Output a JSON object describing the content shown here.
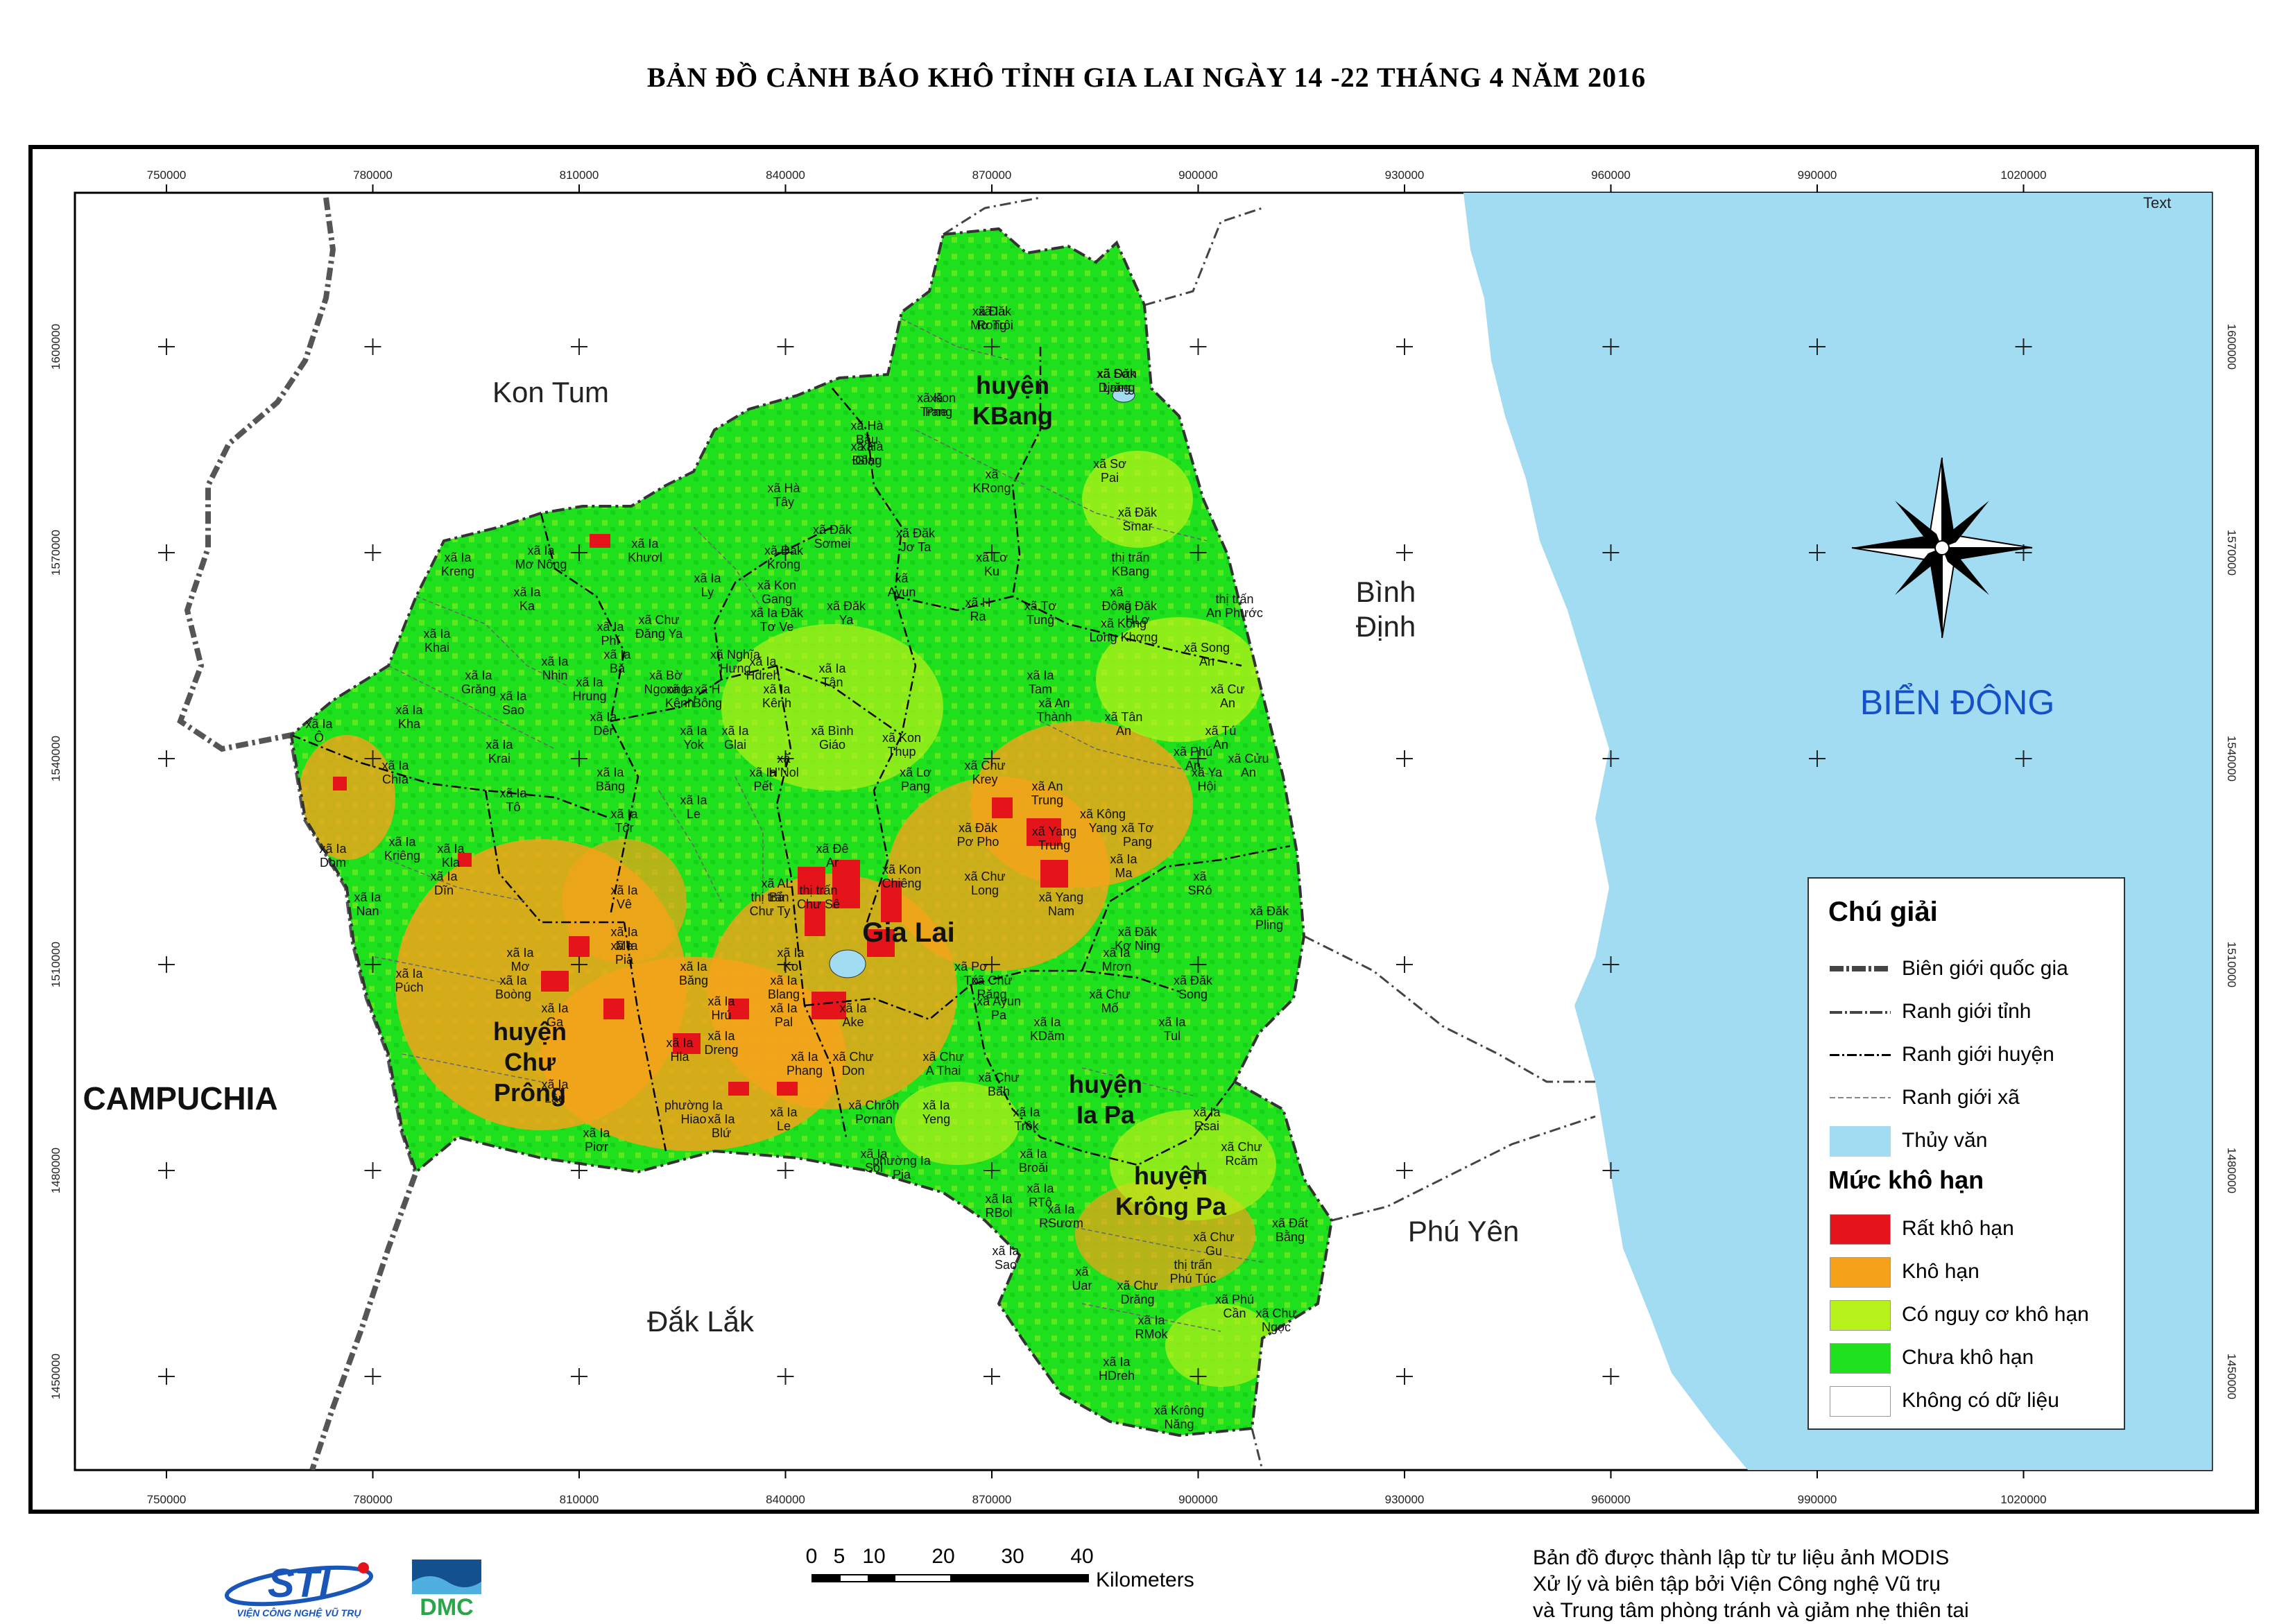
{
  "title": "BẢN ĐỒ CẢNH BÁO KHÔ TỈNH GIA LAI NGÀY 14 -22 THÁNG 4 NĂM 2016",
  "colors": {
    "sea": "#a2dcf2",
    "very_dry": "#e5131a",
    "dry": "#f5a21a",
    "risk": "#b6f11a",
    "not_dry": "#1fe01c",
    "no_data": "#ffffff"
  },
  "axes": {
    "x_ticks": [
      "750000",
      "780000",
      "810000",
      "840000",
      "870000",
      "900000",
      "930000",
      "960000",
      "990000",
      "1020000"
    ],
    "y_ticks": [
      "1600000",
      "1570000",
      "1540000",
      "1510000",
      "1480000",
      "1450000"
    ]
  },
  "regions": {
    "kon_tum": "Kon Tum",
    "binh_dinh": "Bình Định",
    "phu_yen": "Phú Yên",
    "dak_lak": "Đắk Lắk",
    "campuchia": "CAMPUCHIA",
    "bien_dong": "BIỂN ĐÔNG"
  },
  "districts": {
    "kbang": [
      "huyện",
      "KBang"
    ],
    "chu_prong": [
      "huyện",
      "Chư",
      "Prông"
    ],
    "ia_pa": [
      "huyện",
      "Ia Pa"
    ],
    "krong_pa": [
      "huyện",
      "Krông Pa"
    ],
    "gia_lai": "Gia Lai"
  },
  "corner_text": "Text",
  "communes": [
    "xã Đăk Rong",
    "xã Sơn Lang",
    "xã Kon Pne",
    "xã Hà Đông",
    "xã KRong",
    "xã Sơ Pai",
    "xã Đăk Smar",
    "thị trấn KBang",
    "xã Đông",
    "xã Tơ Tung",
    "xã Kông Long Khơng",
    "xã Lơ Ku",
    "xã H Ra",
    "xã Đăk Jơ Ta",
    "xã Ayun",
    "xã Đăk Sơmei",
    "xã Đăk Krong",
    "xã Kon Gang",
    "xã Ia Mơ Nông",
    "xã Ia Kreng",
    "xã Ia Ka",
    "xã Ia Khai",
    "xã Ia Grăng",
    "xã Ia Ô",
    "xã Ia Chía",
    "xã Ia Dom",
    "xã Ia Nan",
    "xã Ia Púch",
    "xã Ia Mơ",
    "xã Ia Lâu",
    "xã Ia Piơr",
    "xã Ia Boòng",
    "xã Ia Ga",
    "xã Ia Pia",
    "xã Ia Hla",
    "xã Ia Blứ",
    "xã Ia Le",
    "xã Ia Phang",
    "xã Ia Rsai",
    "xã Chư Rcăm",
    "xã Đất Bằng",
    "xã Chư Gu",
    "thị trấn Phú Túc",
    "xã Phú Cần",
    "xã Chư Ngọc",
    "xã Uar",
    "xã Chư Drăng",
    "xã Ia RMok",
    "xã Ia HDreh",
    "xã Krông Năng",
    "xã Ia Sao",
    "xã Ia RBol",
    "xã Ia RTô",
    "xã Ia RSươm",
    "xã Ia Broăi",
    "xã Ia Trôk",
    "xã Ia Tul",
    "xã Ia KDăm",
    "xã Chư Mố",
    "xã Ia Mrơn",
    "xã Đăk Song",
    "xã Đăk Pling",
    "xã Ia Ma",
    "xã Yang Trung",
    "xã Đăk Pơ Pho",
    "xã Chư Krey",
    "xã An Trung",
    "xã Kông Yang",
    "xã Tơ Pang",
    "xã Yang Nam",
    "xã Chư Long",
    "xã SRó",
    "xã Đăk Kơ Ning",
    "xã Ya Hội",
    "xã Phú An",
    "xã Tân An",
    "xã Cư An",
    "xã An Thành",
    "xã Ia Tam",
    "xã Tú An",
    "xã Cửu An",
    "xã Song An",
    "thị trấn An Phước",
    "xã Đăk HLơ",
    "xã Ayun Pa",
    "xã Chư Răng",
    "xã Chư Băh",
    "xã Pơ Tó",
    "thị trấn Chư Sê",
    "xã AL Bá",
    "xã Ia Ko",
    "xã Đê Ar",
    "xã Kon Chiêng",
    "xã Lơ Pang",
    "xã Kon Thụp",
    "xã H'Nol",
    "xã Bình Giáo",
    "xã Ia Le",
    "thị trấn Chư Ty",
    "xã Ia Kla",
    "xã Ia Kriêng",
    "xã Ia Dĩn",
    "xã Ia Tô",
    "xã Ia Krai",
    "xã Ia Kha",
    "xã Ia Sao",
    "xã Ia Nhin",
    "xã Ia Hrung",
    "xã Ia Dêr",
    "xã Ia Bă",
    "xã Ia Phí",
    "xã Ia Khươl",
    "xã Ia Ly",
    "xã Chư Đăng Ya",
    "xã Nghĩa Hưng",
    "xã Hà Bầu",
    "xã Hà Tây",
    "xã Ia Kênh",
    "xã Ia Glai",
    "xã Ia Pết",
    "xã Ia Băng",
    "xã Ia Tôr",
    "xã Ia Vê",
    "xã Ia Me",
    "xã Ia Băng",
    "xã Ia Hrú",
    "xã Ia Dreng",
    "xã Ia Pal",
    "xã Ia Blang",
    "xã Chư Don",
    "xã Ia Ake",
    "xã Chư A Thai",
    "xã Ia Yeng",
    "xã Chrôh Pơnan",
    "xã Ia Sol",
    "phường Ia Pia",
    "phường Ia Hiao",
    "xã Ia Hdreh",
    "xã Bờ Ngoong",
    "xã H Bông",
    "xã Ia Đăk Tơ Ve",
    "xã Đăk Ya",
    "xã Ia Tân",
    "xã Ia Kênh",
    "xã Ia Yok",
    "xã Ia Mơ Trôi",
    "xã Đăk Djrăng",
    "xã Trang",
    "xã Glar"
  ],
  "legend": {
    "title": "Chú giải",
    "items": [
      {
        "label": "Biên giới quốc gia",
        "kind": "national"
      },
      {
        "label": "Ranh giới tỉnh",
        "kind": "province"
      },
      {
        "label": "Ranh giới huyện",
        "kind": "district"
      },
      {
        "label": "Ranh giới xã",
        "kind": "commune"
      },
      {
        "label": "Thủy văn",
        "kind": "water"
      }
    ],
    "section": "Mức khô hạn",
    "classes": [
      {
        "label": "Rất khô hạn",
        "color": "#e5131a"
      },
      {
        "label": "Khô hạn",
        "color": "#f5a21a"
      },
      {
        "label": "Có nguy cơ khô hạn",
        "color": "#b6f11a"
      },
      {
        "label": "Chưa khô hạn",
        "color": "#1fe01c"
      },
      {
        "label": "Không có dữ liệu",
        "color": "#ffffff"
      }
    ]
  },
  "scale_bar": {
    "numbers": [
      "0",
      "5",
      "10",
      "20",
      "30",
      "40"
    ],
    "unit": "Kilometers"
  },
  "credits": [
    "Bản đồ được thành lập từ tư liệu ảnh MODIS",
    "Xử lý và biên tập bởi Viện Công nghệ Vũ trụ",
    "và Trung tâm phòng tránh và giảm nhẹ thiên tai"
  ],
  "logos": {
    "sti": "STI",
    "sti_caption": "VIỆN CÔNG NGHỆ VŨ TRỤ",
    "dmc": "DMC"
  }
}
